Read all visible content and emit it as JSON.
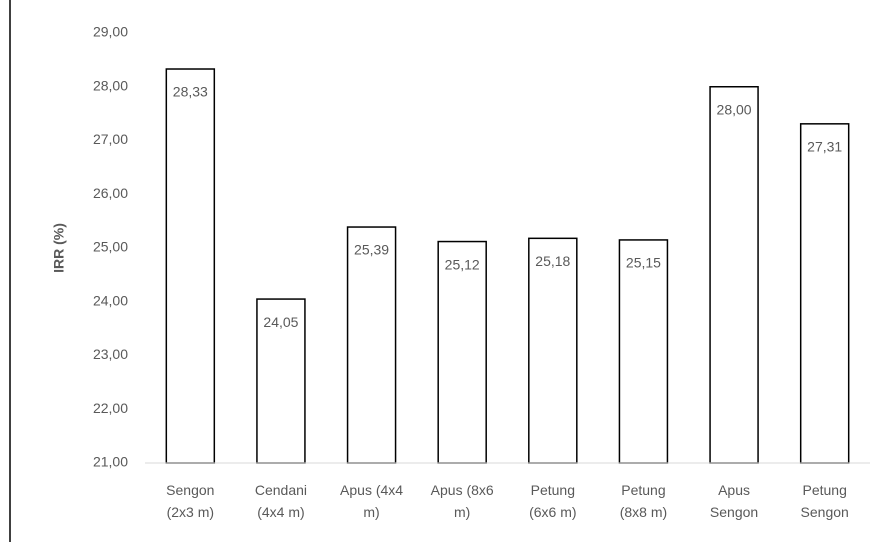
{
  "chart_data": {
    "type": "bar",
    "ylabel": "IRR (%)",
    "categories": [
      "Sengon (2x3 m)",
      "Cendani (4x4 m)",
      "Apus (4x4 m)",
      "Apus (8x6 m)",
      "Petung (6x6 m)",
      "Petung (8x8 m)",
      "Apus Sengon",
      "Petung Sengon"
    ],
    "values": [
      28.33,
      24.05,
      25.39,
      25.12,
      25.18,
      25.15,
      28.0,
      27.31
    ],
    "value_labels": [
      "28,33",
      "24,05",
      "25,39",
      "25,12",
      "25,18",
      "25,15",
      "28,00",
      "27,31"
    ],
    "color": "#ffffff",
    "edgecolor": "#000000",
    "ylim": [
      21,
      29
    ],
    "yticks": [
      {
        "value": 21,
        "label": "21,00"
      },
      {
        "value": 22,
        "label": "22,00"
      },
      {
        "value": 23,
        "label": "23,00"
      },
      {
        "value": 24,
        "label": "24,00"
      },
      {
        "value": 25,
        "label": "25,00"
      },
      {
        "value": 26,
        "label": "26,00"
      },
      {
        "value": 27,
        "label": "27,00"
      },
      {
        "value": 28,
        "label": "28,00"
      },
      {
        "value": 29,
        "label": "29,00"
      }
    ],
    "grid": false
  }
}
